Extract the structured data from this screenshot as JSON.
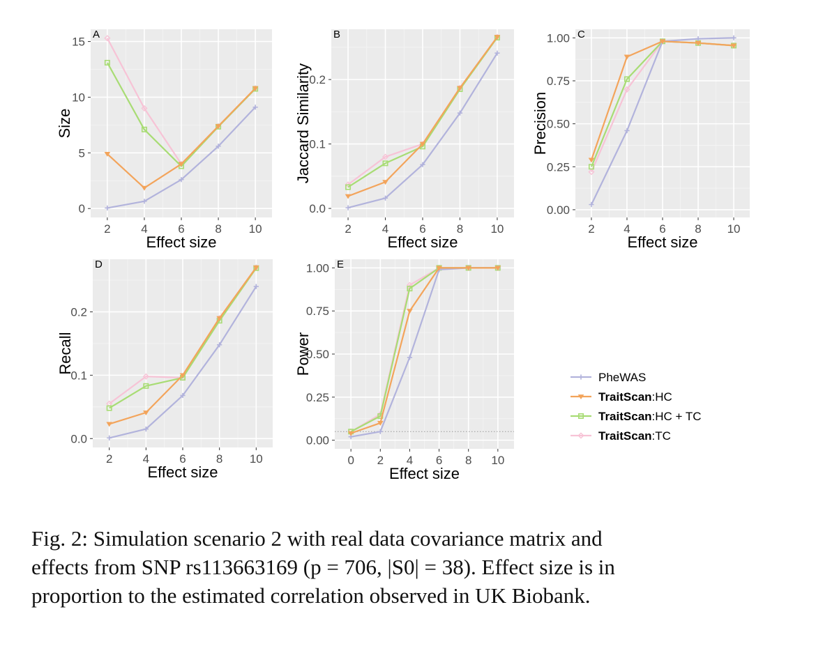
{
  "colors": {
    "PheWAS": "#b2b3dc",
    "HC": "#f3a45b",
    "HCTC": "#a8dc74",
    "TC": "#f7c3d6",
    "reference_line": "#999999"
  },
  "legend": {
    "entries": [
      {
        "key": "PheWAS",
        "bold": "",
        "rest": "PheWAS",
        "icon": "plus-marker"
      },
      {
        "key": "HC",
        "bold": "TraitScan",
        "rest": ":HC",
        "icon": "triangle-down-marker"
      },
      {
        "key": "HCTC",
        "bold": "TraitScan",
        "rest": ":HC + TC",
        "icon": "square-marker"
      },
      {
        "key": "TC",
        "bold": "TraitScan",
        "rest": ":TC",
        "icon": "diamond-marker"
      }
    ]
  },
  "chart_data": [
    {
      "id": "A",
      "type": "line",
      "tag": "A",
      "xlabel": "Effect size",
      "ylabel": "Size",
      "x": [
        2,
        4,
        6,
        8,
        10
      ],
      "xticks": [
        "2",
        "4",
        "6",
        "8",
        "10"
      ],
      "xlim": [
        1.1,
        10.9
      ],
      "yticks": [
        0,
        5,
        10,
        15
      ],
      "yticklabels": [
        "0",
        "5",
        "10",
        "15"
      ],
      "ylim": [
        -0.8,
        16.1
      ],
      "series": [
        {
          "name": "PheWAS",
          "values": [
            0.05,
            0.65,
            2.6,
            5.6,
            9.1
          ]
        },
        {
          "name": "TraitScan:HC",
          "values": [
            4.9,
            1.85,
            4.0,
            7.4,
            10.8
          ]
        },
        {
          "name": "TraitScan:HC + TC",
          "values": [
            13.1,
            7.1,
            3.8,
            7.35,
            10.75
          ]
        },
        {
          "name": "TraitScan:TC",
          "values": [
            15.3,
            9.0,
            4.0,
            7.4,
            10.8
          ]
        }
      ]
    },
    {
      "id": "B",
      "type": "line",
      "tag": "B",
      "xlabel": "Effect size",
      "ylabel": "Jaccard Similarity",
      "x": [
        2,
        4,
        6,
        8,
        10
      ],
      "xticks": [
        "2",
        "4",
        "6",
        "8",
        "10"
      ],
      "xlim": [
        1.1,
        10.9
      ],
      "yticks": [
        0,
        0.1,
        0.2
      ],
      "yticklabels": [
        "0.0",
        "0.1",
        "0.2"
      ],
      "ylim": [
        -0.014,
        0.278
      ],
      "series": [
        {
          "name": "PheWAS",
          "values": [
            0.001,
            0.016,
            0.068,
            0.148,
            0.241
          ]
        },
        {
          "name": "TraitScan:HC",
          "values": [
            0.019,
            0.041,
            0.1,
            0.187,
            0.266
          ]
        },
        {
          "name": "TraitScan:HC + TC",
          "values": [
            0.033,
            0.07,
            0.096,
            0.185,
            0.265
          ]
        },
        {
          "name": "TraitScan:TC",
          "values": [
            0.037,
            0.08,
            0.1,
            0.187,
            0.266
          ]
        }
      ]
    },
    {
      "id": "C",
      "type": "line",
      "tag": "C",
      "xlabel": "Effect size",
      "ylabel": "Precision",
      "x": [
        2,
        4,
        6,
        8,
        10
      ],
      "xticks": [
        "2",
        "4",
        "6",
        "8",
        "10"
      ],
      "xlim": [
        1.1,
        10.9
      ],
      "yticks": [
        0,
        0.25,
        0.5,
        0.75,
        1.0
      ],
      "yticklabels": [
        "0.00",
        "0.25",
        "0.50",
        "0.75",
        "1.00"
      ],
      "ylim": [
        -0.045,
        1.05
      ],
      "series": [
        {
          "name": "PheWAS",
          "values": [
            0.03,
            0.46,
            0.98,
            0.995,
            1.0
          ]
        },
        {
          "name": "TraitScan:HC",
          "values": [
            0.29,
            0.89,
            0.98,
            0.97,
            0.955
          ]
        },
        {
          "name": "TraitScan:HC + TC",
          "values": [
            0.25,
            0.76,
            0.98,
            0.97,
            0.955
          ]
        },
        {
          "name": "TraitScan:TC",
          "values": [
            0.22,
            0.7,
            0.98,
            0.97,
            0.955
          ]
        }
      ]
    },
    {
      "id": "D",
      "type": "line",
      "tag": "D",
      "xlabel": "Effect size",
      "ylabel": "Recall",
      "x": [
        2,
        4,
        6,
        8,
        10
      ],
      "xticks": [
        "2",
        "4",
        "6",
        "8",
        "10"
      ],
      "xlim": [
        1.1,
        10.9
      ],
      "yticks": [
        0,
        0.1,
        0.2
      ],
      "yticklabels": [
        "0.0",
        "0.1",
        "0.2"
      ],
      "ylim": [
        -0.014,
        0.283
      ],
      "series": [
        {
          "name": "PheWAS",
          "values": [
            0.001,
            0.015,
            0.068,
            0.148,
            0.24
          ]
        },
        {
          "name": "TraitScan:HC",
          "values": [
            0.023,
            0.041,
            0.1,
            0.19,
            0.27
          ]
        },
        {
          "name": "TraitScan:HC + TC",
          "values": [
            0.048,
            0.083,
            0.096,
            0.186,
            0.269
          ]
        },
        {
          "name": "TraitScan:TC",
          "values": [
            0.055,
            0.098,
            0.096,
            0.19,
            0.27
          ]
        }
      ]
    },
    {
      "id": "E",
      "type": "line",
      "tag": "E",
      "xlabel": "Effect size",
      "ylabel": "Power",
      "x": [
        0,
        2,
        4,
        6,
        8,
        10
      ],
      "xticks": [
        "0",
        "2",
        "4",
        "6",
        "8",
        "10"
      ],
      "xlim": [
        -1.1,
        11.1
      ],
      "yticks": [
        0,
        0.25,
        0.5,
        0.75,
        1.0
      ],
      "yticklabels": [
        "0.00",
        "0.25",
        "0.50",
        "0.75",
        "1.00"
      ],
      "ylim": [
        -0.05,
        1.05
      ],
      "reference_line": 0.05,
      "series": [
        {
          "name": "PheWAS",
          "values": [
            0.02,
            0.05,
            0.48,
            0.99,
            1.0,
            1.0
          ]
        },
        {
          "name": "TraitScan:HC",
          "values": [
            0.04,
            0.1,
            0.75,
            1.0,
            1.0,
            1.0
          ]
        },
        {
          "name": "TraitScan:HC + TC",
          "values": [
            0.05,
            0.14,
            0.88,
            1.0,
            1.0,
            1.0
          ]
        },
        {
          "name": "TraitScan:TC",
          "values": [
            0.05,
            0.15,
            0.9,
            1.0,
            1.0,
            1.0
          ]
        }
      ]
    }
  ],
  "caption": {
    "line1": "Fig. 2: Simulation scenario 2 with real data covariance matrix and",
    "line2": "effects from SNP rs113663169 (p = 706, |S0| = 38). Effect size is in",
    "line3": "proportion to the estimated correlation observed in UK Biobank."
  }
}
